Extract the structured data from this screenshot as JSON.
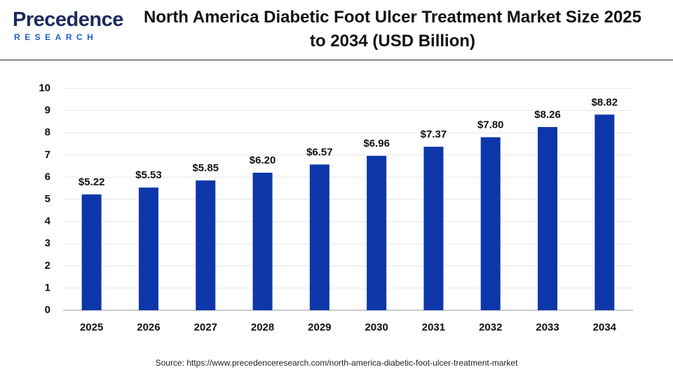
{
  "logo": {
    "name": "Precedence",
    "tagline": "RESEARCH"
  },
  "source": "Source: https://www.precedenceresearch.com/north-america-diabetic-foot-ulcer-treatment-market",
  "chart_data": {
    "type": "bar",
    "title": "North America Diabetic Foot Ulcer Treatment Market Size 2025 to 2034 (USD Billion)",
    "categories": [
      "2025",
      "2026",
      "2027",
      "2028",
      "2029",
      "2030",
      "2031",
      "2032",
      "2033",
      "2034"
    ],
    "values": [
      5.22,
      5.53,
      5.85,
      6.2,
      6.57,
      6.96,
      7.37,
      7.8,
      8.26,
      8.82
    ],
    "value_labels": [
      "$5.22",
      "$5.53",
      "$5.85",
      "$6.20",
      "$6.57",
      "$6.96",
      "$7.37",
      "$7.80",
      "$8.26",
      "$8.82"
    ],
    "color": "#0d37a8",
    "ylim": [
      0,
      10
    ],
    "yticks": [
      0,
      1,
      2,
      3,
      4,
      5,
      6,
      7,
      8,
      9,
      10
    ],
    "grid": true
  }
}
